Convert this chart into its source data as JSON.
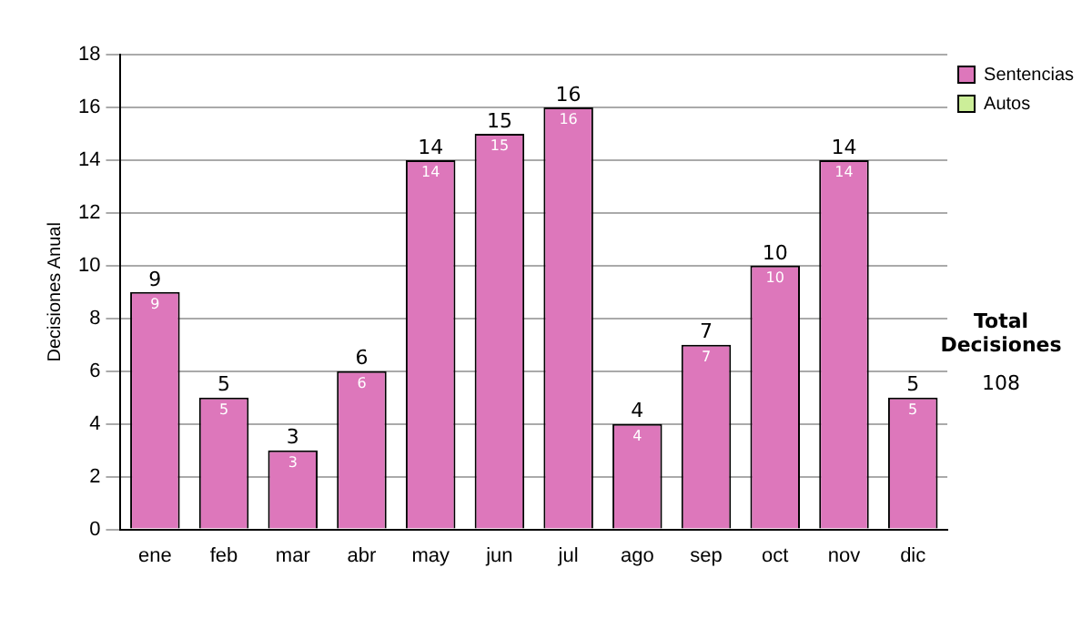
{
  "chart_data": {
    "type": "bar",
    "ylabel": "Decisiones Anual",
    "categories": [
      "ene",
      "feb",
      "mar",
      "abr",
      "may",
      "jun",
      "jul",
      "ago",
      "sep",
      "oct",
      "nov",
      "dic"
    ],
    "series": [
      {
        "name": "Sentencias",
        "color": "#dd77bb",
        "values": [
          9,
          5,
          3,
          6,
          14,
          15,
          16,
          4,
          7,
          10,
          14,
          5
        ]
      },
      {
        "name": "Autos",
        "color": "#ccee99",
        "values": [
          null,
          null,
          null,
          null,
          null,
          null,
          null,
          null,
          null,
          null,
          null,
          null
        ]
      }
    ],
    "stacked": true,
    "data_labels": true,
    "totals": [
      "9",
      "5",
      "3",
      "6",
      "14",
      "15",
      "16",
      "4",
      "7",
      "10",
      "14",
      "5"
    ],
    "ylim": [
      0,
      18
    ],
    "yticks": [
      0,
      2,
      4,
      6,
      8,
      10,
      12,
      14,
      16,
      18
    ],
    "grid": "y",
    "legend": "right",
    "annotations": [
      "Total Decisiones",
      "108"
    ]
  }
}
